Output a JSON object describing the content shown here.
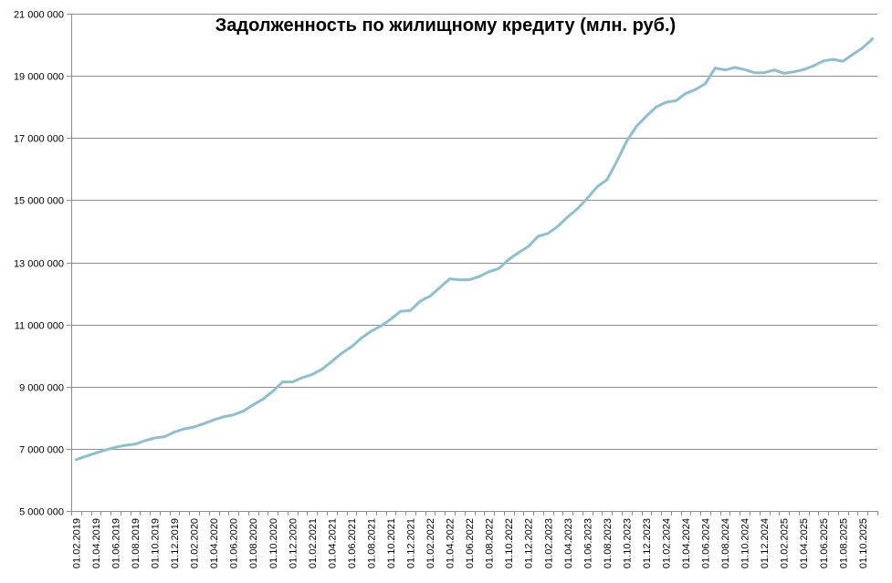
{
  "chart_data": {
    "type": "line",
    "title": "Задолженность по жилищному кредиту (млн. руб.)",
    "xlabel": "",
    "ylabel": "",
    "ylim": [
      5000000,
      21000000
    ],
    "y_ticks": [
      5000000,
      7000000,
      9000000,
      11000000,
      13000000,
      15000000,
      17000000,
      19000000,
      21000000
    ],
    "y_tick_labels": [
      "5 000 000",
      "7 000 000",
      "9 000 000",
      "11 000 000",
      "13 000 000",
      "15 000 000",
      "17 000 000",
      "19 000 000",
      "21 000 000"
    ],
    "grid": true,
    "legend": "none",
    "line_color": "#8fbfcf",
    "x_tick_labels": [
      "01.02.2019",
      "01.04.2019",
      "01.06.2019",
      "01.08.2019",
      "01.10.2019",
      "01.12.2019",
      "01.02.2020",
      "01.04.2020",
      "01.06.2020",
      "01.08.2020",
      "01.10.2020",
      "01.12.2020",
      "01.02.2021",
      "01.04.2021",
      "01.06.2021",
      "01.08.2021",
      "01.10.2021",
      "01.12.2021",
      "01.02.2022",
      "01.04.2022",
      "01.06.2022",
      "01.08.2022",
      "01.10.2022",
      "01.12.2022",
      "01.02.2023",
      "01.04.2023",
      "01.06.2023",
      "01.08.2023",
      "01.10.2023",
      "01.12.2023",
      "01.02.2024",
      "01.04.2024",
      "01.06.2024",
      "01.08.2024",
      "01.10.2024",
      "01.12.2024",
      "01.02.2025",
      "01.04.2025",
      "01.06.2025",
      "01.08.2025",
      "01.10.2025"
    ],
    "x": [
      "01.02.2019",
      "01.03.2019",
      "01.04.2019",
      "01.05.2019",
      "01.06.2019",
      "01.07.2019",
      "01.08.2019",
      "01.09.2019",
      "01.10.2019",
      "01.11.2019",
      "01.12.2019",
      "01.01.2020",
      "01.02.2020",
      "01.03.2020",
      "01.04.2020",
      "01.05.2020",
      "01.06.2020",
      "01.07.2020",
      "01.08.2020",
      "01.09.2020",
      "01.10.2020",
      "01.11.2020",
      "01.12.2020",
      "01.01.2021",
      "01.02.2021",
      "01.03.2021",
      "01.04.2021",
      "01.05.2021",
      "01.06.2021",
      "01.07.2021",
      "01.08.2021",
      "01.09.2021",
      "01.10.2021",
      "01.11.2021",
      "01.12.2021",
      "01.01.2022",
      "01.02.2022",
      "01.03.2022",
      "01.04.2022",
      "01.05.2022",
      "01.06.2022",
      "01.07.2022",
      "01.08.2022",
      "01.09.2022",
      "01.10.2022",
      "01.11.2022",
      "01.12.2022",
      "01.01.2023",
      "01.02.2023",
      "01.03.2023",
      "01.04.2023",
      "01.05.2023",
      "01.06.2023",
      "01.07.2023",
      "01.08.2023",
      "01.09.2023",
      "01.10.2023",
      "01.11.2023",
      "01.12.2023",
      "01.01.2024",
      "01.02.2024",
      "01.03.2024",
      "01.04.2024",
      "01.05.2024",
      "01.06.2024",
      "01.07.2024",
      "01.08.2024",
      "01.09.2024",
      "01.10.2024",
      "01.11.2024",
      "01.12.2024",
      "01.01.2025",
      "01.02.2025",
      "01.03.2025",
      "01.04.2025",
      "01.05.2025",
      "01.06.2025",
      "01.07.2025",
      "01.08.2025",
      "01.09.2025",
      "01.10.2025",
      "01.11.2025"
    ],
    "series": [
      {
        "values": [
          6650000,
          6760000,
          6860000,
          6960000,
          7050000,
          7110000,
          7150000,
          7260000,
          7350000,
          7390000,
          7540000,
          7640000,
          7700000,
          7810000,
          7930000,
          8030000,
          8090000,
          8210000,
          8410000,
          8600000,
          8850000,
          9150000,
          9150000,
          9290000,
          9390000,
          9560000,
          9810000,
          10070000,
          10280000,
          10560000,
          10780000,
          10950000,
          11170000,
          11420000,
          11450000,
          11750000,
          11910000,
          12190000,
          12470000,
          12440000,
          12440000,
          12540000,
          12700000,
          12800000,
          13090000,
          13310000,
          13510000,
          13840000,
          13930000,
          14160000,
          14460000,
          14730000,
          15060000,
          15430000,
          15660000,
          16250000,
          16900000,
          17380000,
          17700000,
          18000000,
          18150000,
          18200000,
          18430000,
          18560000,
          18750000,
          19250000,
          19190000,
          19270000,
          19200000,
          19100000,
          19100000,
          19190000,
          19080000,
          19130000,
          19200000,
          19320000,
          19480000,
          19530000,
          19470000,
          19690000,
          19900000,
          20190000
        ]
      }
    ]
  }
}
